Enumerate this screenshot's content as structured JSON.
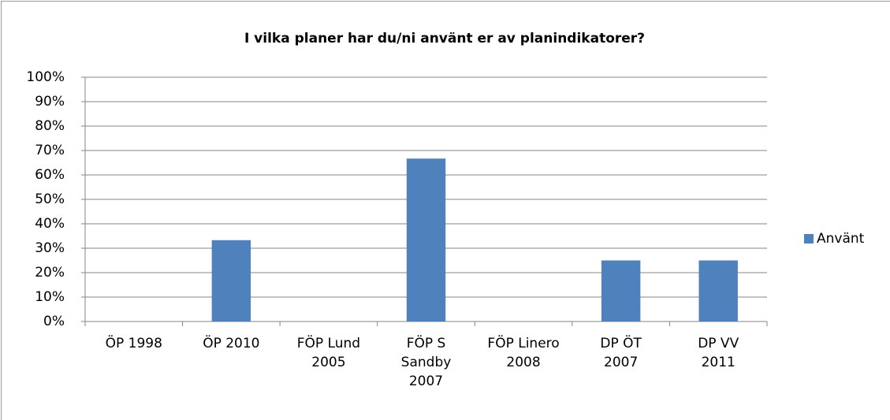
{
  "chart_data": {
    "type": "bar",
    "title": "I vilka planer har du/ni använt er av planindikatorer?",
    "categories": [
      "ÖP 1998",
      "ÖP 2010",
      "FÖP Lund 2005",
      "FÖP S Sandby 2007",
      "FÖP Linero 2008",
      "DP ÖT 2007",
      "DP VV 2011"
    ],
    "series": [
      {
        "name": "Använt",
        "color": "#4f81bd",
        "values": [
          0,
          33.3,
          0,
          66.7,
          0,
          25,
          25
        ]
      }
    ],
    "ylim": [
      0,
      100
    ],
    "yticks": [
      {
        "value": 0,
        "label": "0%"
      },
      {
        "value": 10,
        "label": "10%"
      },
      {
        "value": 20,
        "label": "20%"
      },
      {
        "value": 30,
        "label": "30%"
      },
      {
        "value": 40,
        "label": "40%"
      },
      {
        "value": 50,
        "label": "50%"
      },
      {
        "value": 60,
        "label": "60%"
      },
      {
        "value": 70,
        "label": "70%"
      },
      {
        "value": 80,
        "label": "80%"
      },
      {
        "value": 90,
        "label": "90%"
      },
      {
        "value": 100,
        "label": "100%"
      }
    ],
    "grid": true,
    "legend": "right"
  }
}
